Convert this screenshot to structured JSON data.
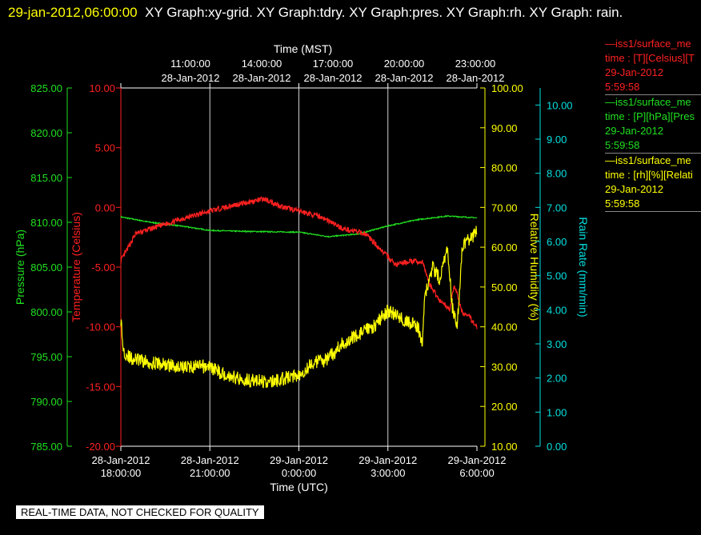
{
  "header": {
    "timestamp": "29-jan-2012,06:00:00",
    "graphs_text": "XY Graph:xy-grid.  XY Graph:tdry.  XY Graph:pres.  XY Graph:rh.  XY Graph: rain."
  },
  "legend": [
    {
      "lines": [
        "—iss1/surface_me",
        "time : [T][Celsius][T",
        "29-Jan-2012",
        "5:59:58"
      ],
      "color": "#ff2020"
    },
    {
      "lines": [
        "—iss1/surface_me",
        "time : [P][hPa][Pres",
        "29-Jan-2012",
        "5:59:58"
      ],
      "color": "#20e020"
    },
    {
      "lines": [
        "—iss1/surface_me",
        "time : [rh][%][Relati",
        "29-Jan-2012",
        "5:59:58"
      ],
      "color": "#ffff00"
    }
  ],
  "disclaimer": "REAL-TIME DATA, NOT CHECKED FOR QUALITY",
  "chart_data": {
    "type": "line",
    "grid": "vertical lines at 3-hour ticks",
    "x_top": {
      "title": "Time (MST)",
      "ticks": [
        {
          "time": "11:00:00",
          "date": "28-Jan-2012"
        },
        {
          "time": "14:00:00",
          "date": "28-Jan-2012"
        },
        {
          "time": "17:00:00",
          "date": "28-Jan-2012"
        },
        {
          "time": "20:00:00",
          "date": "28-Jan-2012"
        },
        {
          "time": "23:00:00",
          "date": "28-Jan-2012"
        }
      ]
    },
    "x_bottom": {
      "title": "Time (UTC)",
      "range": [
        "28-Jan-2012 18:00",
        "29-Jan-2012 06:00"
      ],
      "ticks": [
        {
          "date": "28-Jan-2012",
          "time": "18:00:00"
        },
        {
          "date": "28-Jan-2012",
          "time": "21:00:00"
        },
        {
          "date": "29-Jan-2012",
          "time": "0:00:00"
        },
        {
          "date": "29-Jan-2012",
          "time": "3:00:00"
        },
        {
          "date": "29-Jan-2012",
          "time": "6:00:00"
        }
      ]
    },
    "axes": {
      "pressure": {
        "label": "Pressure (hPa)",
        "ylim": [
          785,
          825
        ],
        "ticks": [
          "825.00",
          "820.00",
          "815.00",
          "810.00",
          "805.00",
          "800.00",
          "795.00",
          "790.00",
          "785.00"
        ],
        "color": "#20e020"
      },
      "temperature": {
        "label": "Temperature (Celsius)",
        "ylim": [
          -20,
          10
        ],
        "ticks": [
          "10.00",
          "5.00",
          "0.00",
          "-5.00",
          "-10.00",
          "-15.00",
          "-20.00"
        ],
        "color": "#ff2020"
      },
      "rh": {
        "label": "Relative Humidity (%)",
        "ylim": [
          10,
          100
        ],
        "ticks": [
          "100.00",
          "90.00",
          "80.00",
          "70.00",
          "60.00",
          "50.00",
          "40.00",
          "30.00",
          "20.00",
          "10.00"
        ],
        "color": "#ffff00"
      },
      "rain": {
        "label": "Rain Rate (mm/min)",
        "ylim": [
          0,
          10.5
        ],
        "ticks": [
          "10.00",
          "9.00",
          "8.00",
          "7.00",
          "6.00",
          "5.00",
          "4.00",
          "3.00",
          "2.00",
          "1.00",
          "0.00"
        ],
        "color": "#00e0e0"
      }
    },
    "series": [
      {
        "axis": "temperature",
        "color": "#ff2020",
        "x": [
          "28-Jan-2012 18:00",
          "28-Jan-2012 18:30",
          "28-Jan-2012 19:00",
          "28-Jan-2012 20:00",
          "28-Jan-2012 21:00",
          "28-Jan-2012 22:00",
          "28-Jan-2012 22:50",
          "28-Jan-2012 23:30",
          "29-Jan-2012 00:00",
          "29-Jan-2012 00:45",
          "29-Jan-2012 01:30",
          "29-Jan-2012 02:15",
          "29-Jan-2012 02:45",
          "29-Jan-2012 03:15",
          "29-Jan-2012 03:45",
          "29-Jan-2012 04:10",
          "29-Jan-2012 04:25",
          "29-Jan-2012 04:45",
          "29-Jan-2012 05:05",
          "29-Jan-2012 05:15",
          "29-Jan-2012 05:30",
          "29-Jan-2012 05:45",
          "29-Jan-2012 06:00"
        ],
        "y": [
          -4.5,
          -2.2,
          -1.8,
          -1.0,
          -0.3,
          0.3,
          0.7,
          0.0,
          -0.3,
          -0.8,
          -1.8,
          -2.2,
          -3.5,
          -4.8,
          -4.5,
          -4.6,
          -6.5,
          -7.8,
          -8.5,
          -6.5,
          -8.8,
          -9.2,
          -10.0
        ]
      },
      {
        "axis": "pressure",
        "color": "#20e020",
        "x": [
          "28-Jan-2012 18:00",
          "28-Jan-2012 19:00",
          "28-Jan-2012 20:00",
          "28-Jan-2012 21:00",
          "28-Jan-2012 22:00",
          "29-Jan-2012 00:00",
          "29-Jan-2012 01:00",
          "29-Jan-2012 02:00",
          "29-Jan-2012 03:00",
          "29-Jan-2012 04:00",
          "29-Jan-2012 05:00",
          "29-Jan-2012 06:00"
        ],
        "y": [
          810.6,
          810.0,
          809.6,
          809.1,
          809.0,
          808.9,
          808.4,
          808.7,
          809.6,
          810.3,
          810.7,
          810.5
        ]
      },
      {
        "axis": "rh",
        "color": "#ffff00",
        "x": [
          "28-Jan-2012 18:00",
          "28-Jan-2012 18:05",
          "28-Jan-2012 18:20",
          "28-Jan-2012 19:00",
          "28-Jan-2012 20:00",
          "28-Jan-2012 21:00",
          "28-Jan-2012 21:30",
          "28-Jan-2012 22:00",
          "28-Jan-2012 23:00",
          "29-Jan-2012 00:00",
          "29-Jan-2012 00:30",
          "29-Jan-2012 01:00",
          "29-Jan-2012 01:30",
          "29-Jan-2012 02:00",
          "29-Jan-2012 02:30",
          "29-Jan-2012 03:00",
          "29-Jan-2012 03:30",
          "29-Jan-2012 04:00",
          "29-Jan-2012 04:10",
          "29-Jan-2012 04:15",
          "29-Jan-2012 04:30",
          "29-Jan-2012 04:45",
          "29-Jan-2012 05:00",
          "29-Jan-2012 05:10",
          "29-Jan-2012 05:20",
          "29-Jan-2012 05:30",
          "29-Jan-2012 05:45",
          "29-Jan-2012 06:00"
        ],
        "y": [
          42,
          34,
          32,
          31,
          30,
          30,
          28,
          27,
          26,
          28,
          31,
          32,
          36,
          38,
          40,
          44,
          42,
          40,
          36,
          48,
          55,
          52,
          60,
          45,
          40,
          60,
          62,
          64
        ]
      }
    ]
  }
}
